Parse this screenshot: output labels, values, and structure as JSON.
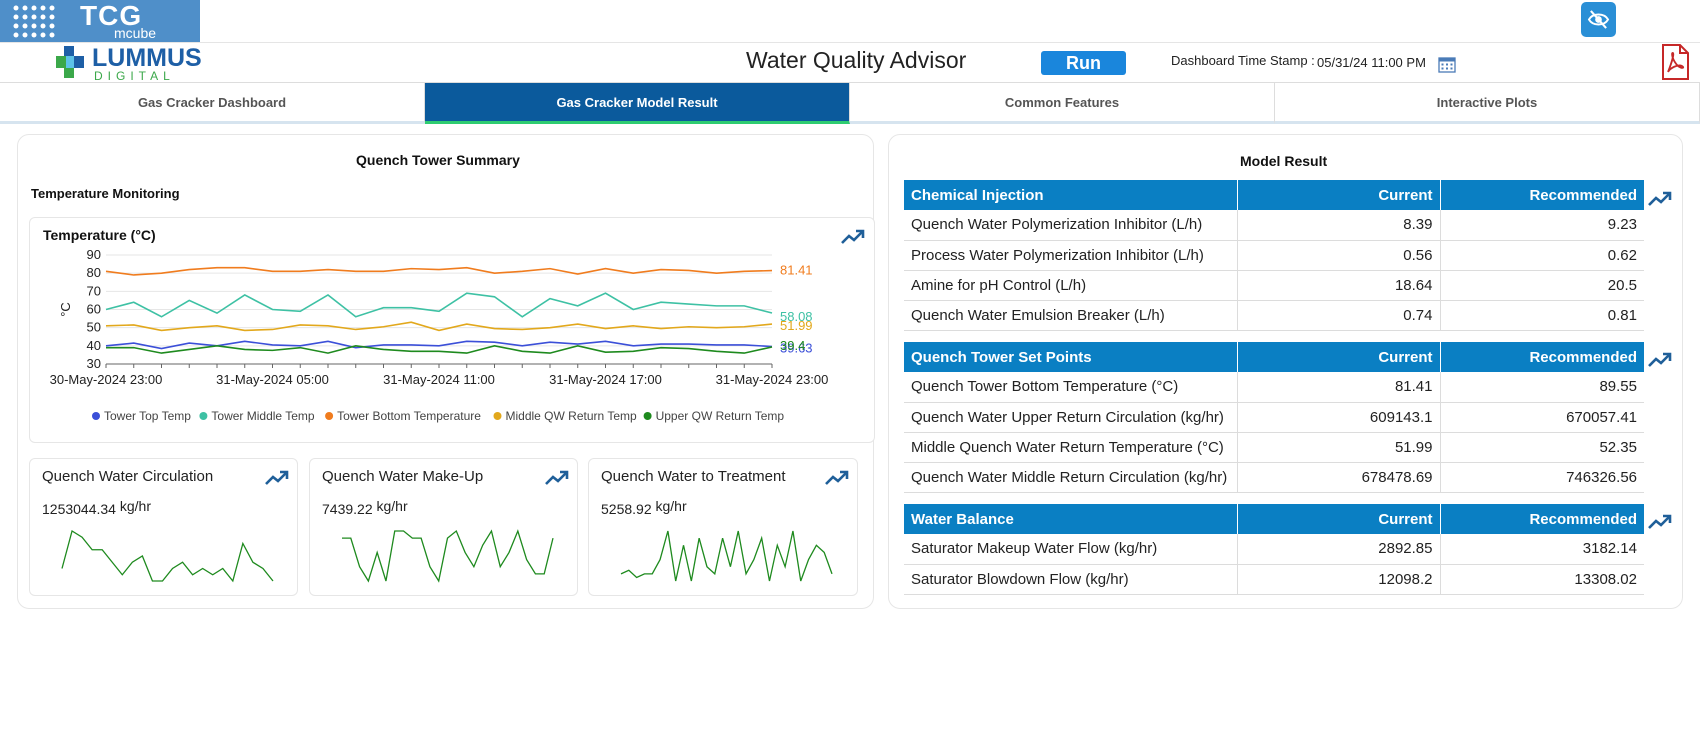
{
  "header": {
    "brand_top": "TCG",
    "brand_sub": "mcube",
    "brand_logo": "LUMMUS",
    "brand_logo_sub": "DIGITAL",
    "app_title": "Water Quality Advisor",
    "run_label": "Run",
    "timestamp_label": "Dashboard Time Stamp :",
    "timestamp_value": "05/31/24 11:00 PM",
    "icons": [
      "calendar-icon",
      "eye-off-icon",
      "pdf-icon"
    ]
  },
  "tabs": [
    {
      "label": "Gas Cracker Dashboard",
      "active": false
    },
    {
      "label": "Gas Cracker Model Result",
      "active": true
    },
    {
      "label": "Common Features",
      "active": false
    },
    {
      "label": "Interactive Plots",
      "active": false
    }
  ],
  "quench": {
    "title": "Quench Tower Summary",
    "subtitle": "Temperature Monitoring"
  },
  "chart_data": [
    {
      "type": "line",
      "title": "Temperature (°C)",
      "ylabel": "°C",
      "ylim": [
        30,
        90
      ],
      "yticks": [
        90,
        80,
        70,
        60,
        50,
        40,
        30
      ],
      "x_tick_labels": [
        "30-May-2024 23:00",
        "31-May-2024 05:00",
        "31-May-2024 11:00",
        "31-May-2024 17:00",
        "31-May-2024 23:00"
      ],
      "legend_position": "bottom",
      "series": [
        {
          "name": "Tower Top Temp",
          "color": "#3b4fd8",
          "end_label": "39.63",
          "values": [
            40,
            41.5,
            38.5,
            41.5,
            40,
            42.5,
            40.5,
            40,
            42.5,
            39,
            40.5,
            40.5,
            40,
            42.5,
            42,
            40,
            42,
            41,
            42.5,
            40,
            41,
            41,
            40.5,
            40.5,
            39.63
          ]
        },
        {
          "name": "Tower Middle Temp",
          "color": "#3ec1a4",
          "end_label": "58.08",
          "values": [
            60,
            64,
            56,
            65,
            58,
            68,
            60,
            59,
            68,
            56,
            61,
            61,
            59,
            69,
            67,
            56,
            66,
            62,
            69,
            60,
            64,
            63,
            62,
            62,
            58.08
          ]
        },
        {
          "name": "Tower Bottom Temperature",
          "color": "#f07c1e",
          "end_label": "81.41",
          "values": [
            81,
            79,
            80,
            82,
            83,
            83,
            81,
            81,
            82,
            81,
            81,
            82.5,
            82,
            83,
            80,
            81,
            82.5,
            79.5,
            82.5,
            80,
            82,
            81.5,
            80,
            81,
            81.41
          ]
        },
        {
          "name": "Middle QW Return Temp",
          "color": "#e2a81c",
          "end_label": "51.99",
          "values": [
            51,
            51.5,
            48.5,
            50,
            51,
            48.5,
            49,
            51.5,
            51,
            49,
            50.5,
            53,
            48.5,
            52,
            49.5,
            49,
            50,
            52,
            49.5,
            51,
            49.5,
            50.5,
            50,
            50.5,
            51.99
          ]
        },
        {
          "name": "Upper QW Return Temp",
          "color": "#1e8a1e",
          "end_label": "39.4",
          "values": [
            39,
            39,
            36,
            38,
            40,
            38,
            37.5,
            39,
            36,
            40,
            38,
            37,
            37,
            36,
            40,
            37,
            36,
            40,
            36.5,
            37,
            39,
            38.5,
            37,
            36,
            39.4
          ]
        }
      ]
    },
    {
      "type": "line",
      "title": "Quench Water Circulation",
      "value": "1253044.34",
      "unit": "kg/hr",
      "series": [
        {
          "color": "#1e8a1e",
          "values": [
            3,
            9,
            8,
            6,
            6,
            4,
            2,
            4,
            5,
            1,
            1,
            3,
            4,
            2,
            3,
            2,
            3,
            1,
            7,
            4,
            3,
            1
          ]
        }
      ]
    },
    {
      "type": "line",
      "title": "Quench Water Make-Up",
      "value": "7439.22",
      "unit": "kg/hr",
      "series": [
        {
          "color": "#1e8a1e",
          "values": [
            6,
            6,
            2,
            0,
            4,
            0,
            7,
            7,
            6,
            6,
            2,
            0,
            6,
            7,
            4,
            2,
            5,
            7,
            2,
            4,
            7,
            3,
            1,
            1,
            6
          ]
        }
      ]
    },
    {
      "type": "line",
      "title": "Quench Water to Treatment",
      "value": "5258.92",
      "unit": "kg/hr",
      "series": [
        {
          "color": "#1e8a1e",
          "values": [
            2,
            2.5,
            1.5,
            2,
            2,
            4,
            8,
            1,
            6,
            1,
            7,
            3,
            2,
            7,
            3,
            8,
            2,
            4,
            7,
            1,
            6,
            3,
            8,
            1,
            4,
            6,
            5,
            2
          ]
        }
      ]
    }
  ],
  "model": {
    "title": "Model Result",
    "tables": [
      {
        "header": [
          "Chemical Injection",
          "Current",
          "Recommended"
        ],
        "rows": [
          [
            "Quench Water Polymerization Inhibitor (L/h)",
            "8.39",
            "9.23"
          ],
          [
            "Process Water Polymerization Inhibitor (L/h)",
            "0.56",
            "0.62"
          ],
          [
            "Amine for pH Control (L/h)",
            "18.64",
            "20.5"
          ],
          [
            "Quench Water Emulsion Breaker (L/h)",
            "0.74",
            "0.81"
          ]
        ]
      },
      {
        "header": [
          "Quench Tower Set Points",
          "Current",
          "Recommended"
        ],
        "rows": [
          [
            "Quench Tower Bottom Temperature (°C)",
            "81.41",
            "89.55"
          ],
          [
            "Quench Water Upper Return Circulation (kg/hr)",
            "609143.1",
            "670057.41"
          ],
          [
            "Middle Quench Water Return Temperature (°C)",
            "51.99",
            "52.35"
          ],
          [
            "Quench Water Middle Return Circulation (kg/hr)",
            "678478.69",
            "746326.56"
          ]
        ]
      },
      {
        "header": [
          "Water Balance",
          "Current",
          "Recommended"
        ],
        "rows": [
          [
            "Saturator Makeup Water Flow (kg/hr)",
            "2892.85",
            "3182.14"
          ],
          [
            "Saturator Blowdown Flow (kg/hr)",
            "12098.2",
            "13308.02"
          ]
        ]
      }
    ]
  }
}
